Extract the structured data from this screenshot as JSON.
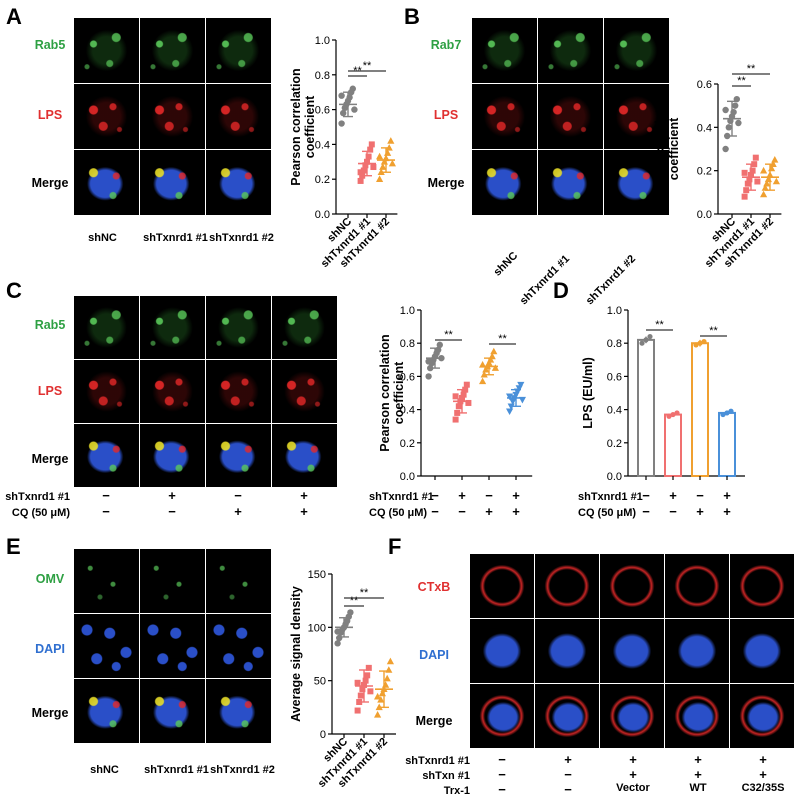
{
  "panels": {
    "A": {
      "letter": "A",
      "rows": [
        "Rab5",
        "LPS",
        "Merge"
      ],
      "columns": [
        "shNC",
        "shTxnrd1 #1",
        "shTxnrd1 #2"
      ]
    },
    "B": {
      "letter": "B",
      "rows": [
        "Rab7",
        "LPS",
        "Merge"
      ],
      "columns": [
        "shNC",
        "shTxnrd1 #1",
        "shTxnrd1 #2"
      ]
    },
    "C": {
      "letter": "C",
      "rows": [
        "Rab5",
        "LPS",
        "Merge"
      ],
      "conditions": [
        {
          "label": "shTxnrd1 #1",
          "signs": [
            "−",
            "+",
            "−",
            "+"
          ]
        },
        {
          "label": "CQ (50 μM)",
          "signs": [
            "−",
            "−",
            "+",
            "+"
          ]
        }
      ]
    },
    "D": {
      "letter": "D",
      "conditions": [
        {
          "label": "shTxnrd1 #1",
          "signs": [
            "−",
            "+",
            "−",
            "+"
          ]
        },
        {
          "label": "CQ (50 μM)",
          "signs": [
            "−",
            "−",
            "+",
            "+"
          ]
        }
      ]
    },
    "E": {
      "letter": "E",
      "rows": [
        "OMV",
        "DAPI",
        "Merge"
      ],
      "columns": [
        "shNC",
        "shTxnrd1 #1",
        "shTxnrd1 #2"
      ]
    },
    "F": {
      "letter": "F",
      "rows": [
        "CTxB",
        "DAPI",
        "Merge"
      ],
      "conditions": [
        {
          "label": "shTxnrd1 #1",
          "signs": [
            "−",
            "+",
            "+",
            "+",
            "+"
          ]
        },
        {
          "label": "shTxn #1",
          "signs": [
            "−",
            "−",
            "+",
            "+",
            "+"
          ]
        },
        {
          "label": "Trx-1",
          "signs": [
            "−",
            "−",
            "Vector",
            "WT",
            "C32/35S"
          ]
        }
      ]
    }
  },
  "chart_data": [
    {
      "id": "A",
      "type": "scatter",
      "ylabel": "Pearson correlation coefficient",
      "ylim": [
        0.0,
        1.0
      ],
      "yticks": [
        "0.0",
        "0.2",
        "0.4",
        "0.6",
        "0.8",
        "1.0"
      ],
      "categories": [
        "shNC",
        "shTxnrd1 #1",
        "shTxnrd1 #2"
      ],
      "colors": [
        "#808080",
        "#f07070",
        "#f0a030"
      ],
      "means": [
        0.63,
        0.29,
        0.31
      ],
      "sds": [
        0.07,
        0.07,
        0.07
      ],
      "points": [
        [
          0.52,
          0.58,
          0.61,
          0.63,
          0.65,
          0.67,
          0.7,
          0.72,
          0.6,
          0.68
        ],
        [
          0.19,
          0.22,
          0.25,
          0.28,
          0.3,
          0.33,
          0.37,
          0.4,
          0.27,
          0.24
        ],
        [
          0.2,
          0.24,
          0.27,
          0.3,
          0.32,
          0.35,
          0.38,
          0.42,
          0.29,
          0.33
        ]
      ],
      "markers": [
        "circle",
        "square",
        "triangle"
      ],
      "significance": [
        {
          "from": 0,
          "to": 1,
          "label": "**"
        },
        {
          "from": 0,
          "to": 2,
          "label": "**"
        }
      ]
    },
    {
      "id": "B",
      "type": "scatter",
      "ylabel": "Pearson correlation coefficient",
      "ylim": [
        0.0,
        0.6
      ],
      "yticks": [
        "0.0",
        "0.2",
        "0.4",
        "0.6"
      ],
      "categories": [
        "shNC",
        "shTxnrd1 #1",
        "shTxnrd1 #2"
      ],
      "colors": [
        "#808080",
        "#f07070",
        "#f0a030"
      ],
      "means": [
        0.44,
        0.17,
        0.17
      ],
      "sds": [
        0.08,
        0.06,
        0.06
      ],
      "points": [
        [
          0.3,
          0.36,
          0.4,
          0.43,
          0.45,
          0.47,
          0.5,
          0.53,
          0.42,
          0.48
        ],
        [
          0.08,
          0.11,
          0.14,
          0.16,
          0.18,
          0.2,
          0.23,
          0.26,
          0.15,
          0.19
        ],
        [
          0.09,
          0.12,
          0.14,
          0.16,
          0.18,
          0.21,
          0.23,
          0.25,
          0.15,
          0.2
        ]
      ],
      "markers": [
        "circle",
        "square",
        "triangle"
      ],
      "significance": [
        {
          "from": 0,
          "to": 1,
          "label": "**"
        },
        {
          "from": 0,
          "to": 2,
          "label": "**"
        }
      ]
    },
    {
      "id": "C",
      "type": "scatter",
      "ylabel": "Pearson correlation coefficient",
      "ylim": [
        0.0,
        1.0
      ],
      "yticks": [
        "0.0",
        "0.2",
        "0.4",
        "0.6",
        "0.8",
        "1.0"
      ],
      "categories": [
        "1",
        "2",
        "3",
        "4"
      ],
      "colors": [
        "#808080",
        "#f07070",
        "#f0a030",
        "#4a90d9"
      ],
      "means": [
        0.71,
        0.45,
        0.66,
        0.47
      ],
      "sds": [
        0.06,
        0.07,
        0.05,
        0.05
      ],
      "points": [
        [
          0.6,
          0.65,
          0.68,
          0.7,
          0.72,
          0.74,
          0.76,
          0.79,
          0.71,
          0.69
        ],
        [
          0.34,
          0.38,
          0.42,
          0.45,
          0.47,
          0.49,
          0.52,
          0.55,
          0.44,
          0.48
        ],
        [
          0.57,
          0.61,
          0.64,
          0.66,
          0.68,
          0.7,
          0.72,
          0.75,
          0.65,
          0.67
        ],
        [
          0.39,
          0.42,
          0.45,
          0.47,
          0.49,
          0.51,
          0.53,
          0.55,
          0.46,
          0.48
        ]
      ],
      "markers": [
        "circle",
        "square",
        "triangle",
        "invtriangle"
      ],
      "significance": [
        {
          "from": 0,
          "to": 1,
          "label": "**"
        },
        {
          "from": 2,
          "to": 3,
          "label": "**"
        }
      ]
    },
    {
      "id": "D",
      "type": "bar",
      "ylabel": "LPS (EU/ml)",
      "ylim": [
        0.0,
        1.0
      ],
      "yticks": [
        "0.0",
        "0.2",
        "0.4",
        "0.6",
        "0.8",
        "1.0"
      ],
      "categories": [
        "1",
        "2",
        "3",
        "4"
      ],
      "colors": [
        "#808080",
        "#f07070",
        "#f0a030",
        "#4a90d9"
      ],
      "values": [
        0.82,
        0.37,
        0.8,
        0.38
      ],
      "sds": [
        0.02,
        0.01,
        0.02,
        0.01
      ],
      "points": [
        [
          0.8,
          0.82,
          0.84
        ],
        [
          0.36,
          0.37,
          0.38
        ],
        [
          0.79,
          0.8,
          0.81
        ],
        [
          0.37,
          0.38,
          0.39
        ]
      ],
      "significance": [
        {
          "from": 0,
          "to": 1,
          "label": "**"
        },
        {
          "from": 2,
          "to": 3,
          "label": "**"
        }
      ]
    },
    {
      "id": "E",
      "type": "scatter",
      "ylabel": "Average signal density",
      "ylim": [
        0,
        150
      ],
      "yticks": [
        "0",
        "50",
        "100",
        "150"
      ],
      "categories": [
        "shNC",
        "shTxnrd1 #1",
        "shTxnrd1 #2"
      ],
      "colors": [
        "#808080",
        "#f07070",
        "#f0a030"
      ],
      "means": [
        100,
        45,
        42
      ],
      "sds": [
        9,
        15,
        17
      ],
      "points": [
        [
          85,
          90,
          95,
          98,
          100,
          103,
          106,
          110,
          114,
          96
        ],
        [
          22,
          30,
          36,
          42,
          46,
          50,
          55,
          62,
          40,
          48
        ],
        [
          18,
          25,
          32,
          38,
          42,
          46,
          52,
          60,
          68,
          35
        ]
      ],
      "markers": [
        "circle",
        "square",
        "triangle"
      ],
      "significance": [
        {
          "from": 0,
          "to": 1,
          "label": "**"
        },
        {
          "from": 0,
          "to": 2,
          "label": "**"
        }
      ]
    }
  ]
}
